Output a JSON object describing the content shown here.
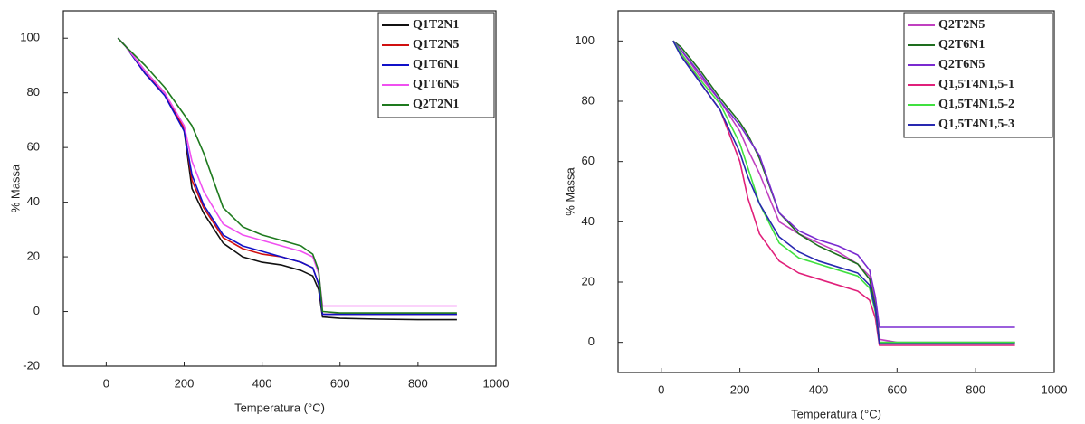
{
  "chart_data": [
    {
      "type": "line",
      "ylabel": "% Massa",
      "xlabel": "Temperatura (°C)",
      "xlim": [
        -110,
        1000
      ],
      "ylim": [
        -20,
        110
      ],
      "xticks": [
        0,
        200,
        400,
        600,
        800,
        1000
      ],
      "yticks": [
        -20,
        0,
        20,
        40,
        60,
        80,
        100
      ],
      "legend": "upper right",
      "x": [
        30,
        50,
        100,
        150,
        200,
        220,
        250,
        300,
        350,
        400,
        450,
        500,
        530,
        545,
        555,
        600,
        700,
        800,
        900
      ],
      "series": [
        {
          "name": "Q1T2N1",
          "color": "#111111",
          "values": [
            100,
            97,
            88,
            80,
            66,
            45,
            36,
            25,
            20,
            18,
            17,
            15,
            13,
            8,
            -2,
            -2.5,
            -2.8,
            -3,
            -3
          ]
        },
        {
          "name": "Q1T2N5",
          "color": "#d01010",
          "values": [
            100,
            97,
            87,
            80,
            67,
            48,
            38,
            27,
            23,
            21,
            20,
            18,
            16,
            10,
            -1,
            -1,
            -1,
            -1,
            -1
          ]
        },
        {
          "name": "Q1T6N1",
          "color": "#1010c8",
          "values": [
            100,
            97,
            87,
            79,
            66,
            50,
            39,
            28,
            24,
            22,
            20,
            18,
            16,
            10,
            -1,
            -1,
            -1,
            -1,
            -1
          ]
        },
        {
          "name": "Q1T6N5",
          "color": "#f050f0",
          "values": [
            100,
            97,
            88,
            80,
            68,
            55,
            44,
            32,
            28,
            26,
            24,
            22,
            20,
            14,
            2,
            2,
            2,
            2,
            2
          ]
        },
        {
          "name": "Q2T2N1",
          "color": "#1e7a1e",
          "values": [
            100,
            97,
            90,
            82,
            72,
            68,
            58,
            38,
            31,
            28,
            26,
            24,
            21,
            15,
            0,
            -0.5,
            -0.5,
            -0.5,
            -0.5
          ]
        }
      ]
    },
    {
      "type": "line",
      "ylabel": "% Massa",
      "xlabel": "Temperatura (°C)",
      "xlim": [
        -110,
        1000
      ],
      "ylim": [
        -10,
        110
      ],
      "xticks": [
        0,
        200,
        400,
        600,
        800,
        1000
      ],
      "yticks": [
        0,
        20,
        40,
        60,
        80,
        100
      ],
      "legend": "upper right",
      "x": [
        30,
        50,
        100,
        150,
        200,
        220,
        250,
        300,
        350,
        400,
        450,
        500,
        530,
        545,
        555,
        600,
        700,
        800,
        900
      ],
      "series": [
        {
          "name": "Q2T2N5",
          "color": "#c040c0",
          "values": [
            100,
            97,
            88,
            80,
            70,
            64,
            56,
            40,
            36,
            33,
            30,
            26,
            22,
            14,
            1,
            0,
            0,
            0,
            0
          ]
        },
        {
          "name": "Q2T6N1",
          "color": "#1e6e1e",
          "values": [
            100,
            98,
            90,
            81,
            73,
            69,
            61,
            43,
            36,
            32,
            29,
            26,
            21,
            12,
            0,
            0,
            0,
            0,
            0
          ]
        },
        {
          "name": "Q2T6N5",
          "color": "#7a2ad0",
          "values": [
            100,
            97,
            89,
            80,
            72,
            68,
            62,
            43,
            37,
            34,
            32,
            29,
            24,
            15,
            5,
            5,
            5,
            5,
            5
          ]
        },
        {
          "name": "Q1,5T4N1,5-1",
          "color": "#e0207a",
          "values": [
            100,
            96,
            86,
            77,
            60,
            48,
            36,
            27,
            23,
            21,
            19,
            17,
            14,
            8,
            -1,
            -1,
            -1,
            -1,
            -1
          ]
        },
        {
          "name": "Q1,5T4N1,5-2",
          "color": "#40e040",
          "values": [
            100,
            96,
            87,
            79,
            66,
            58,
            46,
            33,
            28,
            26,
            24,
            22,
            18,
            10,
            0,
            0,
            0,
            0,
            0
          ]
        },
        {
          "name": "Q1,5T4N1,5-3",
          "color": "#2828b0",
          "values": [
            100,
            95,
            86,
            77,
            63,
            55,
            46,
            35,
            30,
            27,
            25,
            23,
            19,
            11,
            -0.5,
            -0.5,
            -0.5,
            -0.5,
            -0.5
          ]
        }
      ]
    }
  ]
}
